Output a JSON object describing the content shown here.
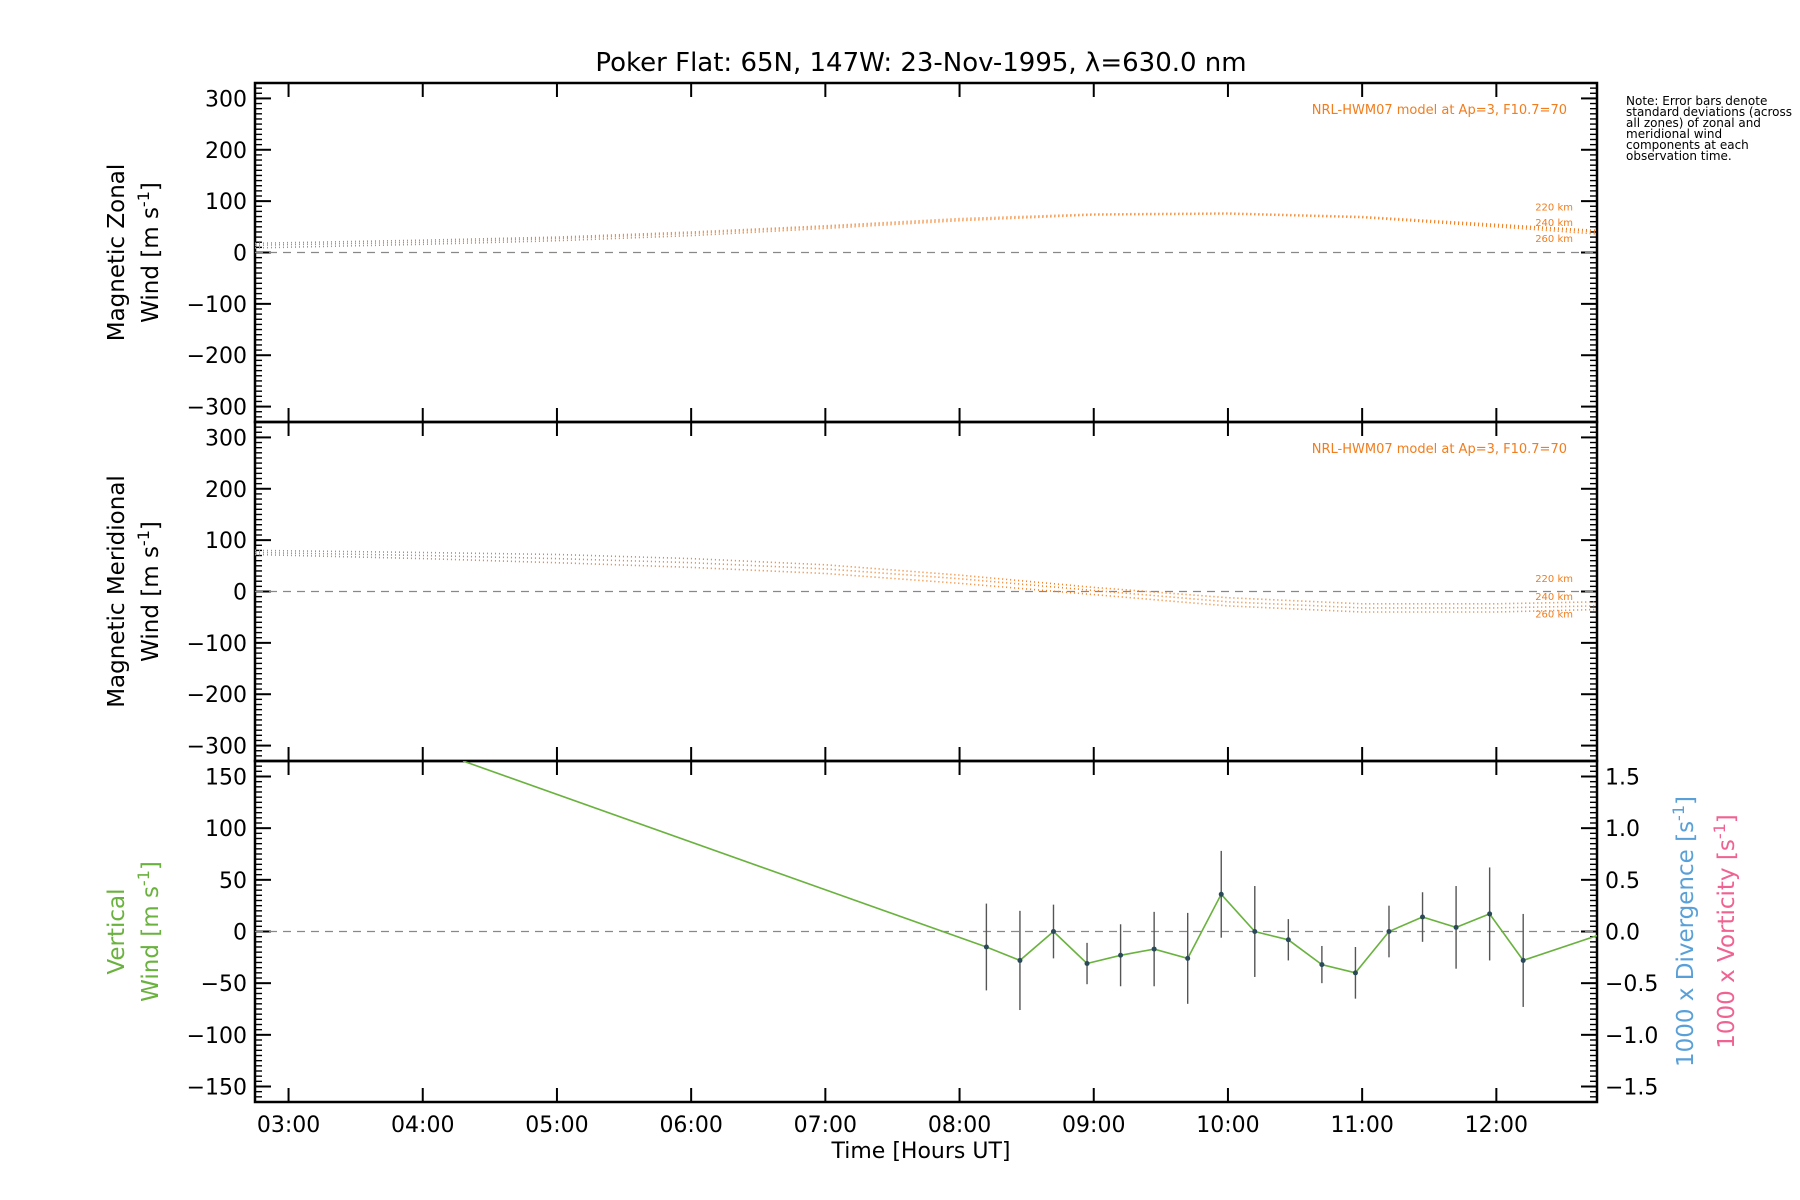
{
  "chart_data": {
    "type": "line",
    "title": "Poker Flat: 65N, 147W: 23-Nov-1995, λ=630.0 nm",
    "xlabel": "Time [Hours UT]",
    "xlim_hours": [
      2.75,
      12.75
    ],
    "x_ticks": [
      {
        "value": 3,
        "label": "03:00"
      },
      {
        "value": 4,
        "label": "04:00"
      },
      {
        "value": 5,
        "label": "05:00"
      },
      {
        "value": 6,
        "label": "06:00"
      },
      {
        "value": 7,
        "label": "07:00"
      },
      {
        "value": 8,
        "label": "08:00"
      },
      {
        "value": 9,
        "label": "09:00"
      },
      {
        "value": 10,
        "label": "10:00"
      },
      {
        "value": 11,
        "label": "11:00"
      },
      {
        "value": 12,
        "label": "12:00"
      }
    ],
    "note": "Note: Error bars denote standard deviations (across all zones) of zonal and meridional wind components at each observation time.",
    "colors": {
      "model": "#f07d1e",
      "vertical": "#6ab23e",
      "divergence": "#5aa0d8",
      "vorticity": "#f06292",
      "errorbar": "#555555",
      "axis": "#000000"
    },
    "panels": [
      {
        "name": "zonal",
        "ylabel_line1": "Magnetic Zonal",
        "ylabel_line2": "Wind [m s",
        "ylabel_sup": "-1",
        "ylabel_close": "]",
        "ylim": [
          -330,
          330
        ],
        "y_ticks": [
          300,
          200,
          100,
          0,
          -100,
          -200,
          -300
        ],
        "y_tick_labels": [
          "300",
          "200",
          "100",
          "0",
          "−100",
          "−200",
          "−300"
        ],
        "model_label": "NRL-HWM07 model at Ap=3, F10.7=70",
        "model_series": [
          {
            "name": "220 km",
            "x": [
              2.75,
              4,
              5,
              6,
              7,
              8,
              9,
              10,
              11,
              12,
              12.75
            ],
            "y": [
              18,
              24,
              30,
              40,
              52,
              66,
              75,
              77,
              70,
              55,
              43
            ]
          },
          {
            "name": "240 km",
            "x": [
              2.75,
              4,
              5,
              6,
              7,
              8,
              9,
              10,
              11,
              12,
              12.75
            ],
            "y": [
              14,
              20,
              27,
              37,
              50,
              64,
              74,
              76,
              69,
              53,
              40
            ]
          },
          {
            "name": "260 km",
            "x": [
              2.75,
              4,
              5,
              6,
              7,
              8,
              9,
              10,
              11,
              12,
              12.75
            ],
            "y": [
              9,
              16,
              23,
              33,
              47,
              62,
              73,
              75,
              68,
              50,
              36
            ]
          }
        ]
      },
      {
        "name": "meridional",
        "ylabel_line1": "Magnetic Meridional",
        "ylabel_line2": "Wind [m s",
        "ylabel_sup": "-1",
        "ylabel_close": "]",
        "ylim": [
          -330,
          330
        ],
        "y_ticks": [
          300,
          200,
          100,
          0,
          -100,
          -200,
          -300
        ],
        "y_tick_labels": [
          "300",
          "200",
          "100",
          "0",
          "−100",
          "−200",
          "−300"
        ],
        "model_label": "NRL-HWM07 model at Ap=3, F10.7=70",
        "model_series": [
          {
            "name": "220 km",
            "x": [
              2.75,
              4,
              5,
              6,
              7,
              8,
              9,
              10,
              11,
              12,
              12.75
            ],
            "y": [
              80,
              76,
              72,
              64,
              52,
              32,
              8,
              -12,
              -24,
              -24,
              -20
            ]
          },
          {
            "name": "240 km",
            "x": [
              2.75,
              4,
              5,
              6,
              7,
              8,
              9,
              10,
              11,
              12,
              12.75
            ],
            "y": [
              76,
              70,
              64,
              56,
              44,
              25,
              2,
              -20,
              -32,
              -32,
              -28
            ]
          },
          {
            "name": "260 km",
            "x": [
              2.75,
              4,
              5,
              6,
              7,
              8,
              9,
              10,
              11,
              12,
              12.75
            ],
            "y": [
              72,
              64,
              56,
              47,
              35,
              16,
              -6,
              -28,
              -40,
              -40,
              -35
            ]
          }
        ]
      },
      {
        "name": "vertical",
        "ylabel_line1": "Vertical",
        "ylabel_line2": "Wind [m s",
        "ylabel_sup": "-1",
        "ylabel_close": "]",
        "ylim": [
          -165,
          165
        ],
        "y_ticks": [
          150,
          100,
          50,
          0,
          -50,
          -100,
          -150
        ],
        "y_tick_labels": [
          "150",
          "100",
          "50",
          "0",
          "−50",
          "−100",
          "−150"
        ],
        "right_ylim": [
          -1.65,
          1.65
        ],
        "right_ticks": [
          1.5,
          1.0,
          0.5,
          0.0,
          -0.5,
          -1.0,
          -1.5
        ],
        "right_tick_labels": [
          "1.5",
          "1.0",
          "0.5",
          "0.0",
          "−0.5",
          "−1.0",
          "−1.5"
        ],
        "right_label_divergence": "1000 x Divergence [s",
        "right_label_vorticity": "1000 x Vorticity [s",
        "right_label_sup": "-1",
        "right_label_close": "]",
        "series": [
          {
            "name": "vertical",
            "x": [
              4.3,
              8.2,
              8.45,
              8.7,
              8.95,
              9.2,
              9.45,
              9.7,
              9.95,
              10.2,
              10.45,
              10.7,
              10.95,
              11.2,
              11.45,
              11.7,
              11.95,
              12.2,
              12.75
            ],
            "y": [
              165,
              -15,
              -28,
              0,
              -31,
              -23,
              -17,
              -26,
              36,
              0,
              -8,
              -32,
              -40,
              0,
              14,
              4,
              17,
              -28,
              -4
            ],
            "err": [
              null,
              42,
              48,
              26,
              20,
              30,
              36,
              44,
              42,
              44,
              20,
              18,
              25,
              25,
              24,
              40,
              45,
              45,
              null
            ]
          }
        ]
      }
    ]
  }
}
